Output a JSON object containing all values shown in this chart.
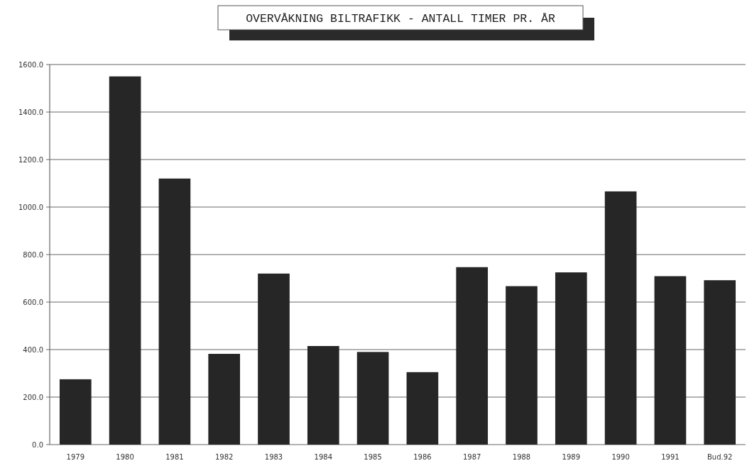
{
  "chart_data": {
    "type": "bar",
    "title": "OVERVÅKNING BILTRAFIKK - ANTALL TIMER PR. ÅR",
    "categories": [
      "1979",
      "1980",
      "1981",
      "1982",
      "1983",
      "1984",
      "1985",
      "1986",
      "1987",
      "1988",
      "1989",
      "1990",
      "1991",
      "Bud.92"
    ],
    "values": [
      275,
      1550,
      1120,
      382,
      720,
      415,
      390,
      305,
      747,
      667,
      725,
      1066,
      709,
      692
    ],
    "color": "#262626",
    "ylim": [
      0,
      1600
    ],
    "yticks": [
      {
        "value": 0,
        "label": "0.0"
      },
      {
        "value": 200,
        "label": "200.0"
      },
      {
        "value": 400,
        "label": "400.0"
      },
      {
        "value": 600,
        "label": "600.0"
      },
      {
        "value": 800,
        "label": "800.0"
      },
      {
        "value": 1000,
        "label": "1000.0"
      },
      {
        "value": 1200,
        "label": "1200.0"
      },
      {
        "value": 1400,
        "label": "1400.0"
      },
      {
        "value": 1600,
        "label": "1600.0"
      }
    ],
    "grid": "y"
  }
}
